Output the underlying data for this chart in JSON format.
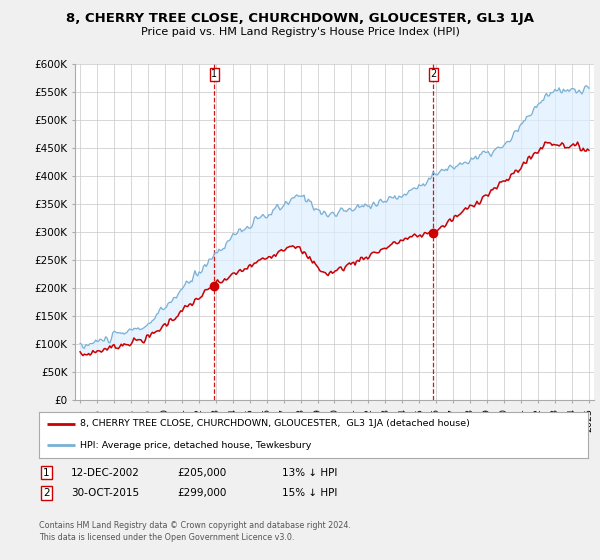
{
  "title": "8, CHERRY TREE CLOSE, CHURCHDOWN, GLOUCESTER, GL3 1JA",
  "subtitle": "Price paid vs. HM Land Registry's House Price Index (HPI)",
  "hpi_color": "#7ab0d4",
  "price_color": "#cc0000",
  "fill_color": "#ddeeff",
  "dashed_color": "#cc0000",
  "background_color": "#f0f0f0",
  "plot_bg": "#ffffff",
  "ylim": [
    0,
    600000
  ],
  "yticks": [
    0,
    50000,
    100000,
    150000,
    200000,
    250000,
    300000,
    350000,
    400000,
    450000,
    500000,
    550000,
    600000
  ],
  "ytick_labels": [
    "£0",
    "£50K",
    "£100K",
    "£150K",
    "£200K",
    "£250K",
    "£300K",
    "£350K",
    "£400K",
    "£450K",
    "£500K",
    "£550K",
    "£600K"
  ],
  "sale1_date": 2002.92,
  "sale1_price": 205000,
  "sale1_label": "1",
  "sale2_date": 2015.83,
  "sale2_price": 299000,
  "sale2_label": "2",
  "legend_line1": "8, CHERRY TREE CLOSE, CHURCHDOWN, GLOUCESTER,  GL3 1JA (detached house)",
  "legend_line2": "HPI: Average price, detached house, Tewkesbury",
  "footnote3": "Contains HM Land Registry data © Crown copyright and database right 2024.",
  "footnote4": "This data is licensed under the Open Government Licence v3.0."
}
